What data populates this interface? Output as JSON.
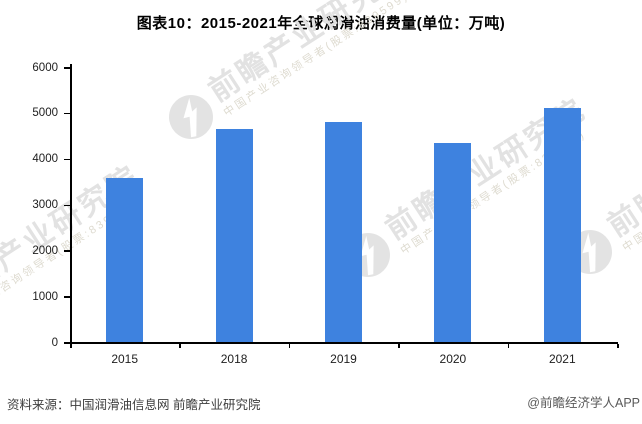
{
  "title": "图表10：2015-2021年全球润滑油消费量(单位：万吨)",
  "chart_data": {
    "type": "bar",
    "title": "图表10：2015-2021年全球润滑油消费量(单位：万吨)",
    "unit": "万吨",
    "categories": [
      "2015",
      "2018",
      "2019",
      "2020",
      "2021"
    ],
    "values": [
      3580,
      4650,
      4800,
      4350,
      5100
    ],
    "xlabel": "",
    "ylabel": "",
    "ylim": [
      0,
      6000
    ],
    "yticks": [
      0,
      1000,
      2000,
      3000,
      4000,
      5000,
      6000
    ],
    "grid": false,
    "legend": false,
    "bar_color": "#3e82df"
  },
  "footer": {
    "source": "资料来源：中国润滑油信息网 前瞻产业研究院",
    "credit": "@前瞻经济学人APP"
  },
  "watermark": {
    "main": "前瞻产业研究院",
    "sub": "中国产业咨询领导者(股票:839599)"
  }
}
